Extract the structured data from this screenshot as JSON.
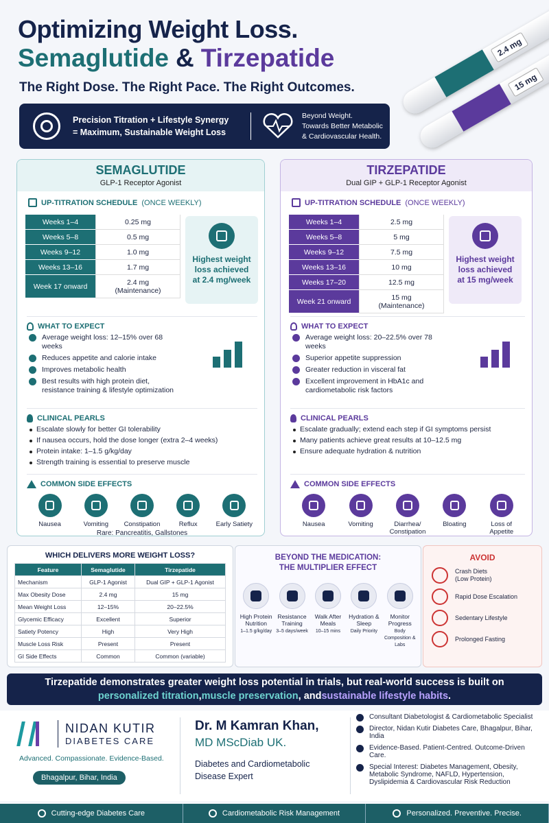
{
  "header": {
    "title": "Optimizing Weight Loss.",
    "drug_a": "Semaglutide",
    "amp": "&",
    "drug_b": "Tirzepatide",
    "tagline": "The Right Dose. The Right Pace. The Right Outcomes."
  },
  "banner": {
    "left": [
      "Precision Titration + Lifestyle Synergy",
      "= Maximum, Sustainable Weight Loss"
    ],
    "right": [
      "Beyond Weight.",
      "Towards Better Metabolic",
      "& Cardiovascular Health."
    ]
  },
  "pens": [
    "2.4 mg",
    "15 mg"
  ],
  "panels": [
    {
      "name": "SEMAGLUTIDE",
      "subtitle": "GLP-1 Receptor Agonist",
      "schedule_title": "UP-TITRATION SCHEDULE",
      "schedule_note": "(ONCE WEEKLY)",
      "schedule": [
        [
          "Weeks 1–4",
          "0.25 mg"
        ],
        [
          "Weeks 5–8",
          "0.5 mg"
        ],
        [
          "Weeks 9–12",
          "1.0 mg"
        ],
        [
          "Weeks 13–16",
          "1.7 mg"
        ],
        [
          "Week 17 onward",
          "2.4 mg",
          "(Maintenance)"
        ]
      ],
      "highlight": "Highest weight loss achieved at 2.4 mg/week",
      "expect_title": "WHAT TO EXPECT",
      "expect": [
        "Average weight loss: 12–15% over 68 weeks",
        "Reduces appetite and calorie intake",
        "Improves metabolic health",
        "Best results with high protein diet, resistance training & lifestyle optimization"
      ],
      "pearls_title": "CLINICAL PEARLS",
      "pearls": [
        "Escalate slowly for better GI tolerability",
        "If nausea occurs, hold the dose longer (extra 2–4 weeks)",
        "Protein intake: 1–1.5 g/kg/day",
        "Strength training is essential to preserve muscle"
      ],
      "side_title": "COMMON SIDE EFFECTS",
      "side_effects": [
        "Nausea",
        "Vomiting",
        "Constipation",
        "Reflux",
        "Early Satiety"
      ],
      "rare": "Rare: Pancreatitis, Gallstones"
    },
    {
      "name": "TIRZEPATIDE",
      "subtitle": "Dual GIP + GLP-1 Receptor Agonist",
      "schedule_title": "UP-TITRATION SCHEDULE",
      "schedule_note": "(ONCE WEEKLY)",
      "schedule": [
        [
          "Weeks 1–4",
          "2.5 mg"
        ],
        [
          "Weeks 5–8",
          "5 mg"
        ],
        [
          "Weeks 9–12",
          "7.5 mg"
        ],
        [
          "Weeks 13–16",
          "10 mg"
        ],
        [
          "Weeks 17–20",
          "12.5 mg"
        ],
        [
          "Week 21 onward",
          "15 mg",
          "(Maintenance)"
        ]
      ],
      "highlight": "Highest weight loss achieved at 15 mg/week",
      "expect_title": "WHAT TO EXPECT",
      "expect": [
        "Average weight loss: 20–22.5% over 78 weeks",
        "Superior appetite suppression",
        "Greater reduction in visceral fat",
        "Excellent improvement in HbA1c and cardiometabolic risk factors"
      ],
      "pearls_title": "CLINICAL PEARLS",
      "pearls": [
        "Escalate gradually; extend each step if GI symptoms persist",
        "Many patients achieve great results at 10–12.5 mg",
        "Ensure adequate hydration & nutrition"
      ],
      "side_title": "COMMON SIDE EFFECTS",
      "side_effects": [
        "Nausea",
        "Vomiting",
        "Diarrhea/ Constipation",
        "Bloating",
        "Loss of Appetite"
      ]
    }
  ],
  "comparison": {
    "title": "WHICH DELIVERS MORE WEIGHT LOSS?",
    "header": [
      "Feature",
      "Semaglutide",
      "Tirzepatide"
    ],
    "rows": [
      [
        "Mechanism",
        "GLP-1 Agonist",
        "Dual GIP + GLP-1 Agonist"
      ],
      [
        "Max Obesity Dose",
        "2.4 mg",
        "15 mg"
      ],
      [
        "Mean Weight Loss",
        "12–15%",
        "20–22.5%"
      ],
      [
        "Glycemic Efficacy",
        "Excellent",
        "Superior"
      ],
      [
        "Satiety Potency",
        "High",
        "Very High"
      ],
      [
        "Muscle Loss Risk",
        "Present",
        "Present"
      ],
      [
        "GI Side Effects",
        "Common",
        "Common (variable)"
      ]
    ]
  },
  "multiplier": {
    "title": [
      "BEYOND THE MEDICATION:",
      "THE MULTIPLIER EFFECT"
    ],
    "items": [
      [
        "High Protein Nutrition",
        "1–1.5 g/kg/day"
      ],
      [
        "Resistance Training",
        "3–5 days/week"
      ],
      [
        "Walk After Meals",
        "10–15 mins"
      ],
      [
        "Hydration & Sleep",
        "Daily Priority"
      ],
      [
        "Monitor Progress",
        "Body Composition & Labs"
      ]
    ]
  },
  "avoid": {
    "title": "AVOID",
    "items": [
      [
        "Crash Diets",
        "(Low Protein)"
      ],
      [
        "Rapid Dose Escalation"
      ],
      [
        "Sedentary Lifestyle"
      ],
      [
        "Prolonged Fasting"
      ]
    ]
  },
  "conclusion": [
    "Tirzepatide demonstrates greater weight loss potential in trials, but real-world success is built on",
    "personalized titration",
    ",",
    "muscle preservation",
    ", and",
    "sustainable lifestyle habits",
    "."
  ],
  "footer": {
    "brand": "NIDAN KUTIR",
    "brand_sub": "DIABETES CARE",
    "motto": "Advanced. Compassionate. Evidence-Based.",
    "location": "Bhagalpur, Bihar, India",
    "doctor": [
      "Dr. M Kamran Khan,",
      "MD MScDiab UK."
    ],
    "role": "Diabetes and Cardiometabolic Disease Expert",
    "credentials": [
      "Consultant Diabetologist & Cardiometabolic Specialist",
      "Director, Nidan Kutir Diabetes Care, Bhagalpur, Bihar, India",
      "Evidence-Based. Patient-Centred. Outcome-Driven Care.",
      "Special Interest: Diabetes Management, Obesity, Metabolic Syndrome, NAFLD, Hypertension, Dyslipidemia & Cardiovascular Risk Reduction"
    ],
    "bar": [
      "Cutting-edge Diabetes Care",
      "Cardiometabolic Risk Management",
      "Personalized. Preventive. Precise."
    ]
  }
}
